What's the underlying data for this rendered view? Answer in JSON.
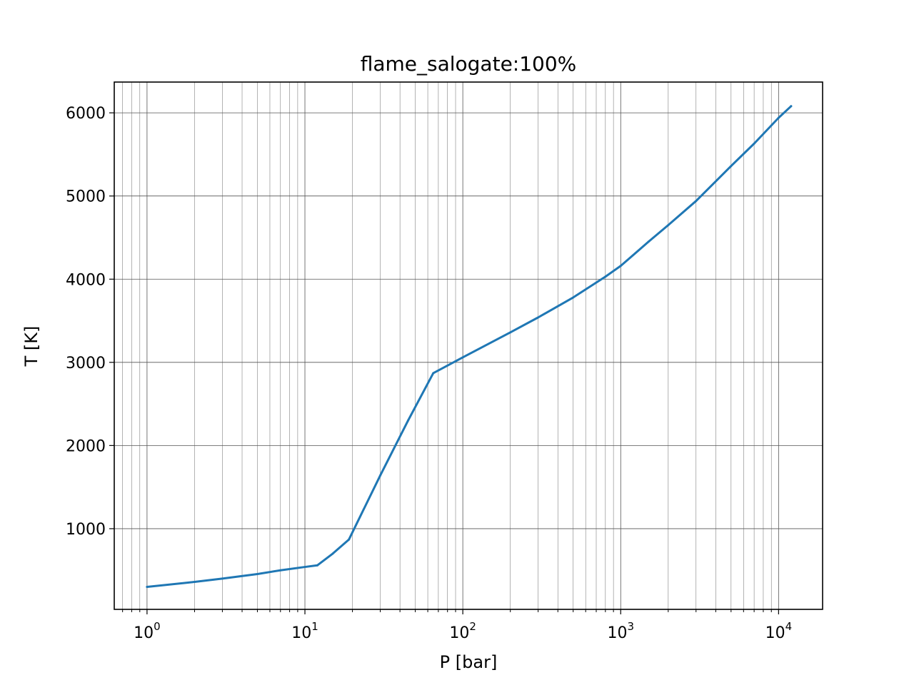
{
  "chart_data": {
    "type": "line",
    "title": "flame_salogate:100%",
    "xlabel": "P [bar]",
    "ylabel": "T [K]",
    "xscale": "log",
    "xlim": [
      0.62,
      19000
    ],
    "ylim": [
      30,
      6370
    ],
    "grid": true,
    "x_ticks": [
      {
        "value": 1,
        "base": "10",
        "exp": "0"
      },
      {
        "value": 10,
        "base": "10",
        "exp": "1"
      },
      {
        "value": 100,
        "base": "10",
        "exp": "2"
      },
      {
        "value": 1000,
        "base": "10",
        "exp": "3"
      },
      {
        "value": 10000,
        "base": "10",
        "exp": "4"
      }
    ],
    "y_ticks": [
      {
        "value": 1000,
        "label": "1000"
      },
      {
        "value": 2000,
        "label": "2000"
      },
      {
        "value": 3000,
        "label": "3000"
      },
      {
        "value": 4000,
        "label": "4000"
      },
      {
        "value": 5000,
        "label": "5000"
      },
      {
        "value": 6000,
        "label": "6000"
      }
    ],
    "series": [
      {
        "color": "#1f77b4",
        "x": [
          1,
          2,
          3,
          5,
          7,
          10,
          12,
          15,
          19,
          30,
          45,
          65,
          100,
          200,
          300,
          500,
          800,
          1000,
          1500,
          2000,
          3000,
          5000,
          7000,
          10000,
          12000
        ],
        "y": [
          300,
          360,
          400,
          455,
          500,
          540,
          560,
          700,
          870,
          1640,
          2300,
          2870,
          3060,
          3360,
          3540,
          3780,
          4030,
          4160,
          4450,
          4650,
          4940,
          5360,
          5630,
          5940,
          6080
        ]
      }
    ]
  }
}
